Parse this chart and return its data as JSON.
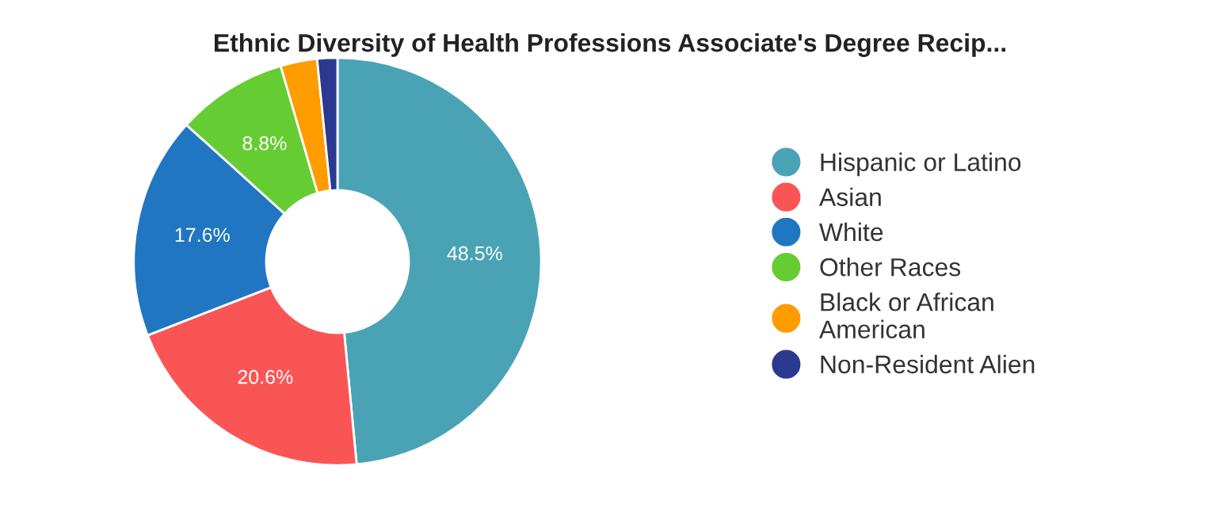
{
  "chart_data": {
    "type": "donut",
    "title": "Ethnic Diversity of Health Professions Associate's Degree Recip...",
    "categories": [
      "Hispanic or Latino",
      "Asian",
      "White",
      "Other Races",
      "Black or African\nAmerican",
      "Non-Resident Alien"
    ],
    "values": [
      48.5,
      20.6,
      17.6,
      8.8,
      2.9,
      1.6
    ],
    "value_labels": [
      "48.5%",
      "20.6%",
      "17.6%",
      "8.8%",
      null,
      null
    ],
    "colors": [
      "#4aa3b5",
      "#fa5555",
      "#2176c2",
      "#66cc33",
      "#ff9c00",
      "#2b3990"
    ],
    "legend": "right"
  }
}
